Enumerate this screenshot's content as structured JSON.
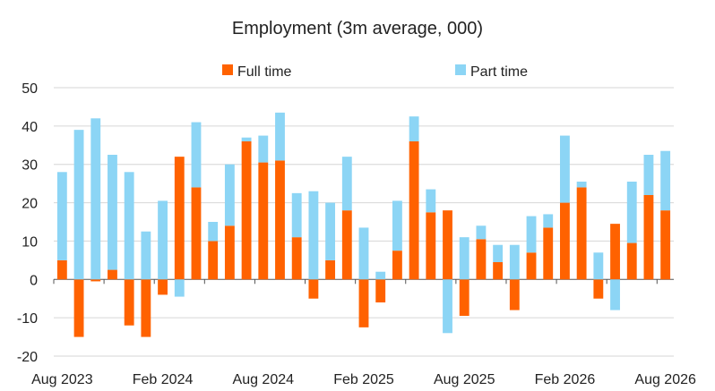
{
  "chart_data": {
    "type": "bar",
    "stacked": true,
    "title": "Employment (3m average, 000)",
    "xlabel": "",
    "ylabel": "",
    "ylim": [
      -20,
      50
    ],
    "yticks": [
      -20,
      -10,
      0,
      10,
      20,
      30,
      40,
      50
    ],
    "xtick_labels": [
      "Aug 2023",
      "Feb 2024",
      "Aug 2024",
      "Feb 2025",
      "Aug 2025",
      "Feb 2026",
      "Aug 2026"
    ],
    "xtick_indices": [
      0,
      6,
      12,
      18,
      24,
      30,
      36
    ],
    "grid": true,
    "legend": "top",
    "categories": [
      "Aug 2023",
      "Sep 2023",
      "Oct 2023",
      "Nov 2023",
      "Dec 2023",
      "Jan 2024",
      "Feb 2024",
      "Mar 2024",
      "Apr 2024",
      "May 2024",
      "Jun 2024",
      "Jul 2024",
      "Aug 2024",
      "Sep 2024",
      "Oct 2024",
      "Nov 2024",
      "Dec 2024",
      "Jan 2025",
      "Feb 2025",
      "Mar 2025",
      "Apr 2025",
      "May 2025",
      "Jun 2025",
      "Jul 2025",
      "Aug 2025",
      "Sep 2025",
      "Oct 2025",
      "Nov 2025",
      "Dec 2025",
      "Jan 2026",
      "Feb 2026",
      "Mar 2026",
      "Apr 2026",
      "May 2026",
      "Jun 2026",
      "Jul 2026",
      "Aug 2026"
    ],
    "series": [
      {
        "name": "Full time",
        "color": "#ff6200",
        "values": [
          5,
          -15,
          -0.5,
          2.5,
          -12,
          -15,
          -4,
          32,
          24,
          10,
          14,
          36,
          30.5,
          31,
          11,
          -5,
          5,
          18,
          -12.5,
          -6,
          7.5,
          36,
          17.5,
          18,
          -9.5,
          10.5,
          4.5,
          -8,
          7,
          13.5,
          20,
          24,
          -5,
          14.5,
          9.5,
          22,
          18
        ]
      },
      {
        "name": "Part time",
        "color": "#8cd5f5",
        "values": [
          23,
          39,
          42,
          30,
          28,
          12.5,
          20.5,
          -4.5,
          17,
          5,
          16,
          1,
          7,
          12.5,
          11.5,
          23,
          15,
          14,
          13.5,
          2,
          13,
          6.5,
          6,
          -14,
          11,
          3.5,
          4.5,
          9,
          9.5,
          3.5,
          17.5,
          1.5,
          7,
          -8,
          16,
          10.5,
          15.5
        ]
      }
    ]
  }
}
